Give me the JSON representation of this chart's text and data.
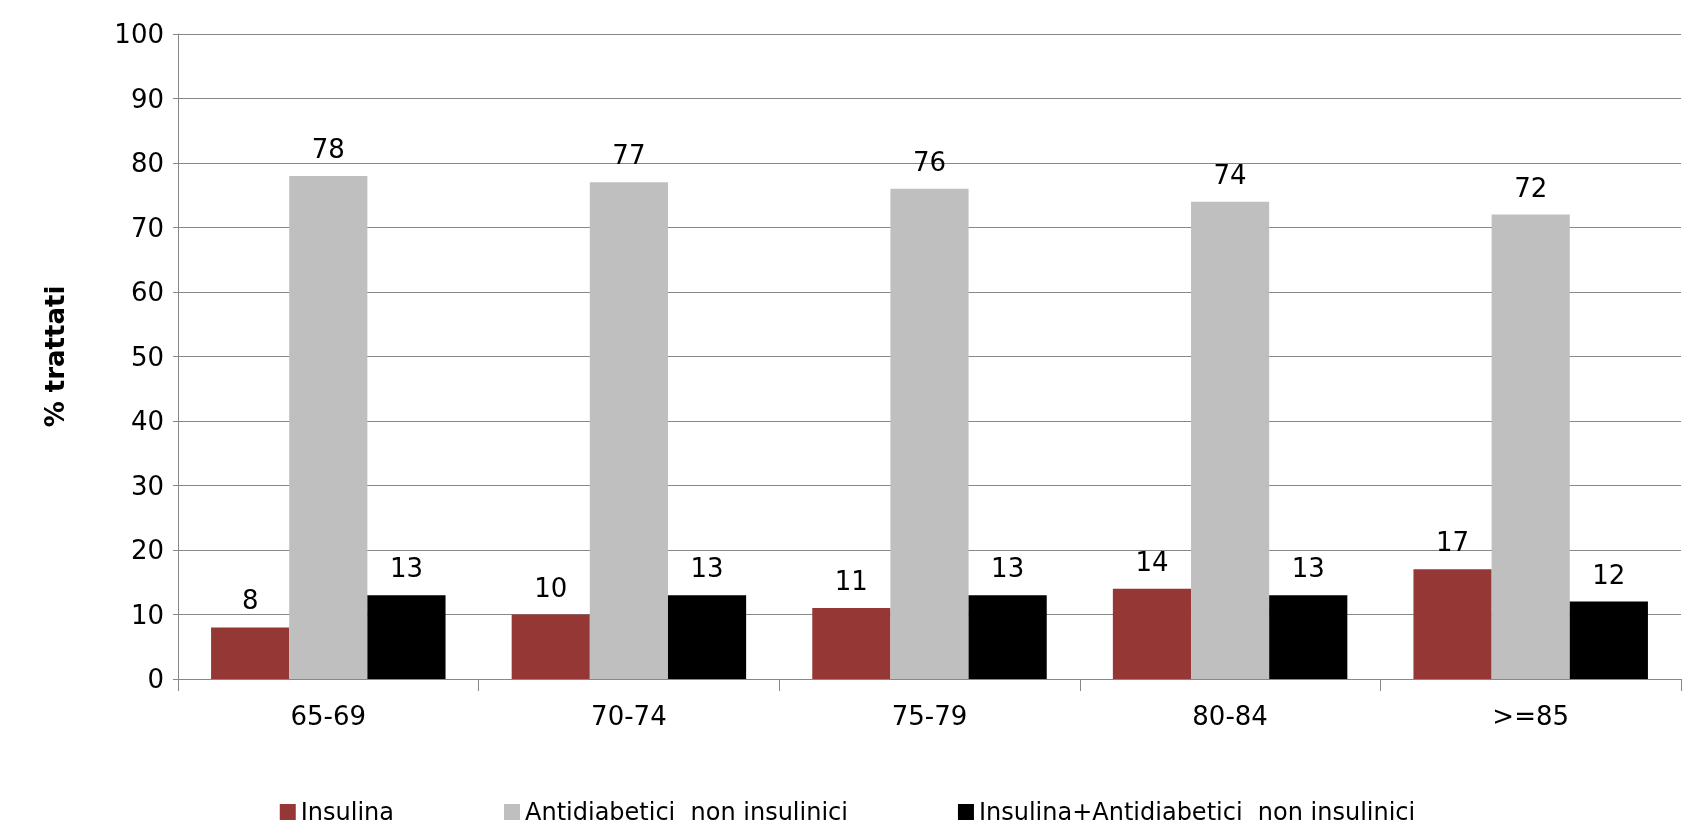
{
  "chart_data": {
    "type": "bar",
    "ylabel": "% trattati",
    "categories": [
      "65-69",
      "70-74",
      "75-79",
      "80-84",
      ">=85"
    ],
    "series": [
      {
        "name": "Insulina",
        "color": "#953735",
        "values": [
          8,
          10,
          11,
          14,
          17
        ]
      },
      {
        "name": "Antidiabetici  non insulinici",
        "color": "#bfbfbf",
        "values": [
          78,
          77,
          76,
          74,
          72
        ]
      },
      {
        "name": "Insulina+Antidiabetici  non insulinici",
        "color": "#000000",
        "values": [
          13,
          13,
          13,
          13,
          12
        ]
      }
    ],
    "ylim": [
      0,
      100
    ],
    "yticks": [
      0,
      10,
      20,
      30,
      40,
      50,
      60,
      70,
      80,
      90,
      100
    ],
    "grid": "y",
    "legend": "bottom",
    "data_labels": true
  }
}
